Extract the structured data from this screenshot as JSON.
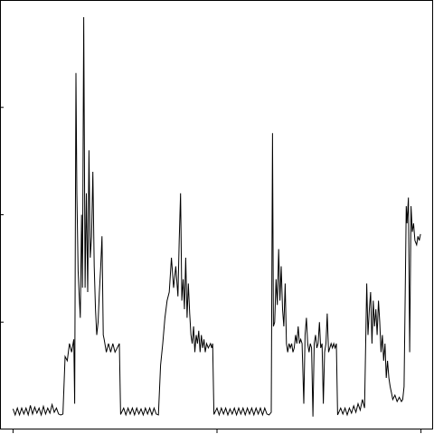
{
  "chart_data": {
    "type": "line",
    "title": "",
    "xlabel": "",
    "ylabel": "",
    "xlim": [
      0,
      1
    ],
    "ylim": [
      0,
      1
    ],
    "x_ticks": [
      0.03,
      0.5,
      0.97
    ],
    "y_ticks": [
      0.25,
      0.5,
      0.75
    ],
    "grid": false,
    "legend": "none",
    "series": [
      {
        "color": "#000000",
        "values": [
          [
            0.03,
            0.048
          ],
          [
            0.035,
            0.034
          ],
          [
            0.04,
            0.05
          ],
          [
            0.045,
            0.034
          ],
          [
            0.05,
            0.05
          ],
          [
            0.055,
            0.036
          ],
          [
            0.06,
            0.05
          ],
          [
            0.065,
            0.034
          ],
          [
            0.07,
            0.056
          ],
          [
            0.075,
            0.036
          ],
          [
            0.08,
            0.052
          ],
          [
            0.085,
            0.038
          ],
          [
            0.09,
            0.05
          ],
          [
            0.095,
            0.034
          ],
          [
            0.1,
            0.054
          ],
          [
            0.105,
            0.036
          ],
          [
            0.11,
            0.05
          ],
          [
            0.115,
            0.038
          ],
          [
            0.12,
            0.058
          ],
          [
            0.125,
            0.04
          ],
          [
            0.13,
            0.05
          ],
          [
            0.135,
            0.036
          ],
          [
            0.14,
            0.034
          ],
          [
            0.145,
            0.036
          ],
          [
            0.15,
            0.17
          ],
          [
            0.155,
            0.16
          ],
          [
            0.16,
            0.2
          ],
          [
            0.165,
            0.18
          ],
          [
            0.17,
            0.21
          ],
          [
            0.172,
            0.06
          ],
          [
            0.175,
            0.83
          ],
          [
            0.177,
            0.55
          ],
          [
            0.18,
            0.37
          ],
          [
            0.182,
            0.32
          ],
          [
            0.185,
            0.26
          ],
          [
            0.188,
            0.5
          ],
          [
            0.19,
            0.33
          ],
          [
            0.193,
            0.96
          ],
          [
            0.196,
            0.33
          ],
          [
            0.199,
            0.55
          ],
          [
            0.202,
            0.32
          ],
          [
            0.205,
            0.65
          ],
          [
            0.208,
            0.4
          ],
          [
            0.211,
            0.45
          ],
          [
            0.214,
            0.6
          ],
          [
            0.217,
            0.38
          ],
          [
            0.22,
            0.28
          ],
          [
            0.223,
            0.22
          ],
          [
            0.226,
            0.25
          ],
          [
            0.229,
            0.32
          ],
          [
            0.232,
            0.38
          ],
          [
            0.235,
            0.45
          ],
          [
            0.238,
            0.22
          ],
          [
            0.24,
            0.21
          ],
          [
            0.245,
            0.18
          ],
          [
            0.25,
            0.2
          ],
          [
            0.255,
            0.18
          ],
          [
            0.26,
            0.2
          ],
          [
            0.265,
            0.18
          ],
          [
            0.27,
            0.19
          ],
          [
            0.275,
            0.2
          ],
          [
            0.278,
            0.035
          ],
          [
            0.285,
            0.05
          ],
          [
            0.29,
            0.034
          ],
          [
            0.295,
            0.05
          ],
          [
            0.3,
            0.036
          ],
          [
            0.305,
            0.05
          ],
          [
            0.31,
            0.034
          ],
          [
            0.315,
            0.05
          ],
          [
            0.32,
            0.036
          ],
          [
            0.325,
            0.048
          ],
          [
            0.33,
            0.034
          ],
          [
            0.335,
            0.05
          ],
          [
            0.34,
            0.036
          ],
          [
            0.345,
            0.05
          ],
          [
            0.35,
            0.034
          ],
          [
            0.355,
            0.05
          ],
          [
            0.36,
            0.036
          ],
          [
            0.365,
            0.034
          ],
          [
            0.37,
            0.15
          ],
          [
            0.375,
            0.2
          ],
          [
            0.38,
            0.26
          ],
          [
            0.385,
            0.3
          ],
          [
            0.39,
            0.32
          ],
          [
            0.395,
            0.4
          ],
          [
            0.4,
            0.33
          ],
          [
            0.405,
            0.38
          ],
          [
            0.41,
            0.31
          ],
          [
            0.413,
            0.44
          ],
          [
            0.416,
            0.55
          ],
          [
            0.419,
            0.3
          ],
          [
            0.422,
            0.35
          ],
          [
            0.425,
            0.28
          ],
          [
            0.428,
            0.4
          ],
          [
            0.431,
            0.26
          ],
          [
            0.434,
            0.34
          ],
          [
            0.437,
            0.27
          ],
          [
            0.44,
            0.22
          ],
          [
            0.443,
            0.2
          ],
          [
            0.446,
            0.24
          ],
          [
            0.449,
            0.18
          ],
          [
            0.452,
            0.22
          ],
          [
            0.455,
            0.2
          ],
          [
            0.458,
            0.23
          ],
          [
            0.461,
            0.18
          ],
          [
            0.464,
            0.22
          ],
          [
            0.467,
            0.19
          ],
          [
            0.47,
            0.21
          ],
          [
            0.473,
            0.18
          ],
          [
            0.476,
            0.2
          ],
          [
            0.48,
            0.19
          ],
          [
            0.485,
            0.2
          ],
          [
            0.488,
            0.19
          ],
          [
            0.49,
            0.2
          ],
          [
            0.493,
            0.035
          ],
          [
            0.5,
            0.05
          ],
          [
            0.505,
            0.034
          ],
          [
            0.51,
            0.05
          ],
          [
            0.515,
            0.036
          ],
          [
            0.52,
            0.05
          ],
          [
            0.525,
            0.034
          ],
          [
            0.53,
            0.048
          ],
          [
            0.535,
            0.036
          ],
          [
            0.54,
            0.05
          ],
          [
            0.545,
            0.034
          ],
          [
            0.55,
            0.05
          ],
          [
            0.555,
            0.036
          ],
          [
            0.56,
            0.05
          ],
          [
            0.565,
            0.034
          ],
          [
            0.57,
            0.05
          ],
          [
            0.575,
            0.036
          ],
          [
            0.58,
            0.05
          ],
          [
            0.585,
            0.034
          ],
          [
            0.59,
            0.05
          ],
          [
            0.595,
            0.036
          ],
          [
            0.6,
            0.05
          ],
          [
            0.605,
            0.034
          ],
          [
            0.61,
            0.05
          ],
          [
            0.615,
            0.036
          ],
          [
            0.62,
            0.034
          ],
          [
            0.625,
            0.04
          ],
          [
            0.628,
            0.69
          ],
          [
            0.63,
            0.24
          ],
          [
            0.633,
            0.25
          ],
          [
            0.636,
            0.35
          ],
          [
            0.639,
            0.29
          ],
          [
            0.642,
            0.42
          ],
          [
            0.645,
            0.3
          ],
          [
            0.648,
            0.38
          ],
          [
            0.651,
            0.28
          ],
          [
            0.654,
            0.24
          ],
          [
            0.657,
            0.34
          ],
          [
            0.66,
            0.2
          ],
          [
            0.663,
            0.18
          ],
          [
            0.666,
            0.2
          ],
          [
            0.669,
            0.19
          ],
          [
            0.672,
            0.2
          ],
          [
            0.675,
            0.18
          ],
          [
            0.678,
            0.19
          ],
          [
            0.681,
            0.22
          ],
          [
            0.684,
            0.2
          ],
          [
            0.687,
            0.24
          ],
          [
            0.69,
            0.2
          ],
          [
            0.693,
            0.21
          ],
          [
            0.696,
            0.2
          ],
          [
            0.7,
            0.06
          ],
          [
            0.703,
            0.22
          ],
          [
            0.706,
            0.26
          ],
          [
            0.709,
            0.2
          ],
          [
            0.712,
            0.18
          ],
          [
            0.715,
            0.2
          ],
          [
            0.718,
            0.19
          ],
          [
            0.721,
            0.03
          ],
          [
            0.724,
            0.2
          ],
          [
            0.727,
            0.22
          ],
          [
            0.73,
            0.19
          ],
          [
            0.733,
            0.2
          ],
          [
            0.736,
            0.25
          ],
          [
            0.739,
            0.19
          ],
          [
            0.742,
            0.2
          ],
          [
            0.745,
            0.06
          ],
          [
            0.748,
            0.18
          ],
          [
            0.751,
            0.2
          ],
          [
            0.754,
            0.27
          ],
          [
            0.757,
            0.18
          ],
          [
            0.76,
            0.19
          ],
          [
            0.763,
            0.2
          ],
          [
            0.766,
            0.19
          ],
          [
            0.769,
            0.2
          ],
          [
            0.772,
            0.19
          ],
          [
            0.775,
            0.2
          ],
          [
            0.778,
            0.034
          ],
          [
            0.785,
            0.05
          ],
          [
            0.79,
            0.036
          ],
          [
            0.795,
            0.05
          ],
          [
            0.8,
            0.034
          ],
          [
            0.805,
            0.05
          ],
          [
            0.81,
            0.038
          ],
          [
            0.815,
            0.055
          ],
          [
            0.82,
            0.04
          ],
          [
            0.825,
            0.06
          ],
          [
            0.83,
            0.045
          ],
          [
            0.835,
            0.07
          ],
          [
            0.84,
            0.05
          ],
          [
            0.845,
            0.34
          ],
          [
            0.848,
            0.22
          ],
          [
            0.851,
            0.28
          ],
          [
            0.854,
            0.32
          ],
          [
            0.857,
            0.2
          ],
          [
            0.86,
            0.3
          ],
          [
            0.863,
            0.24
          ],
          [
            0.866,
            0.28
          ],
          [
            0.869,
            0.22
          ],
          [
            0.872,
            0.3
          ],
          [
            0.875,
            0.25
          ],
          [
            0.878,
            0.18
          ],
          [
            0.881,
            0.22
          ],
          [
            0.884,
            0.16
          ],
          [
            0.887,
            0.2
          ],
          [
            0.89,
            0.12
          ],
          [
            0.893,
            0.16
          ],
          [
            0.896,
            0.12
          ],
          [
            0.899,
            0.1
          ],
          [
            0.902,
            0.085
          ],
          [
            0.905,
            0.07
          ],
          [
            0.91,
            0.08
          ],
          [
            0.915,
            0.065
          ],
          [
            0.92,
            0.075
          ],
          [
            0.925,
            0.065
          ],
          [
            0.928,
            0.07
          ],
          [
            0.931,
            0.1
          ],
          [
            0.934,
            0.34
          ],
          [
            0.936,
            0.52
          ],
          [
            0.938,
            0.48
          ],
          [
            0.941,
            0.54
          ],
          [
            0.944,
            0.18
          ],
          [
            0.947,
            0.52
          ],
          [
            0.95,
            0.46
          ],
          [
            0.953,
            0.48
          ],
          [
            0.956,
            0.44
          ],
          [
            0.96,
            0.43
          ],
          [
            0.963,
            0.45
          ],
          [
            0.966,
            0.44
          ],
          [
            0.969,
            0.455
          ]
        ]
      }
    ]
  }
}
